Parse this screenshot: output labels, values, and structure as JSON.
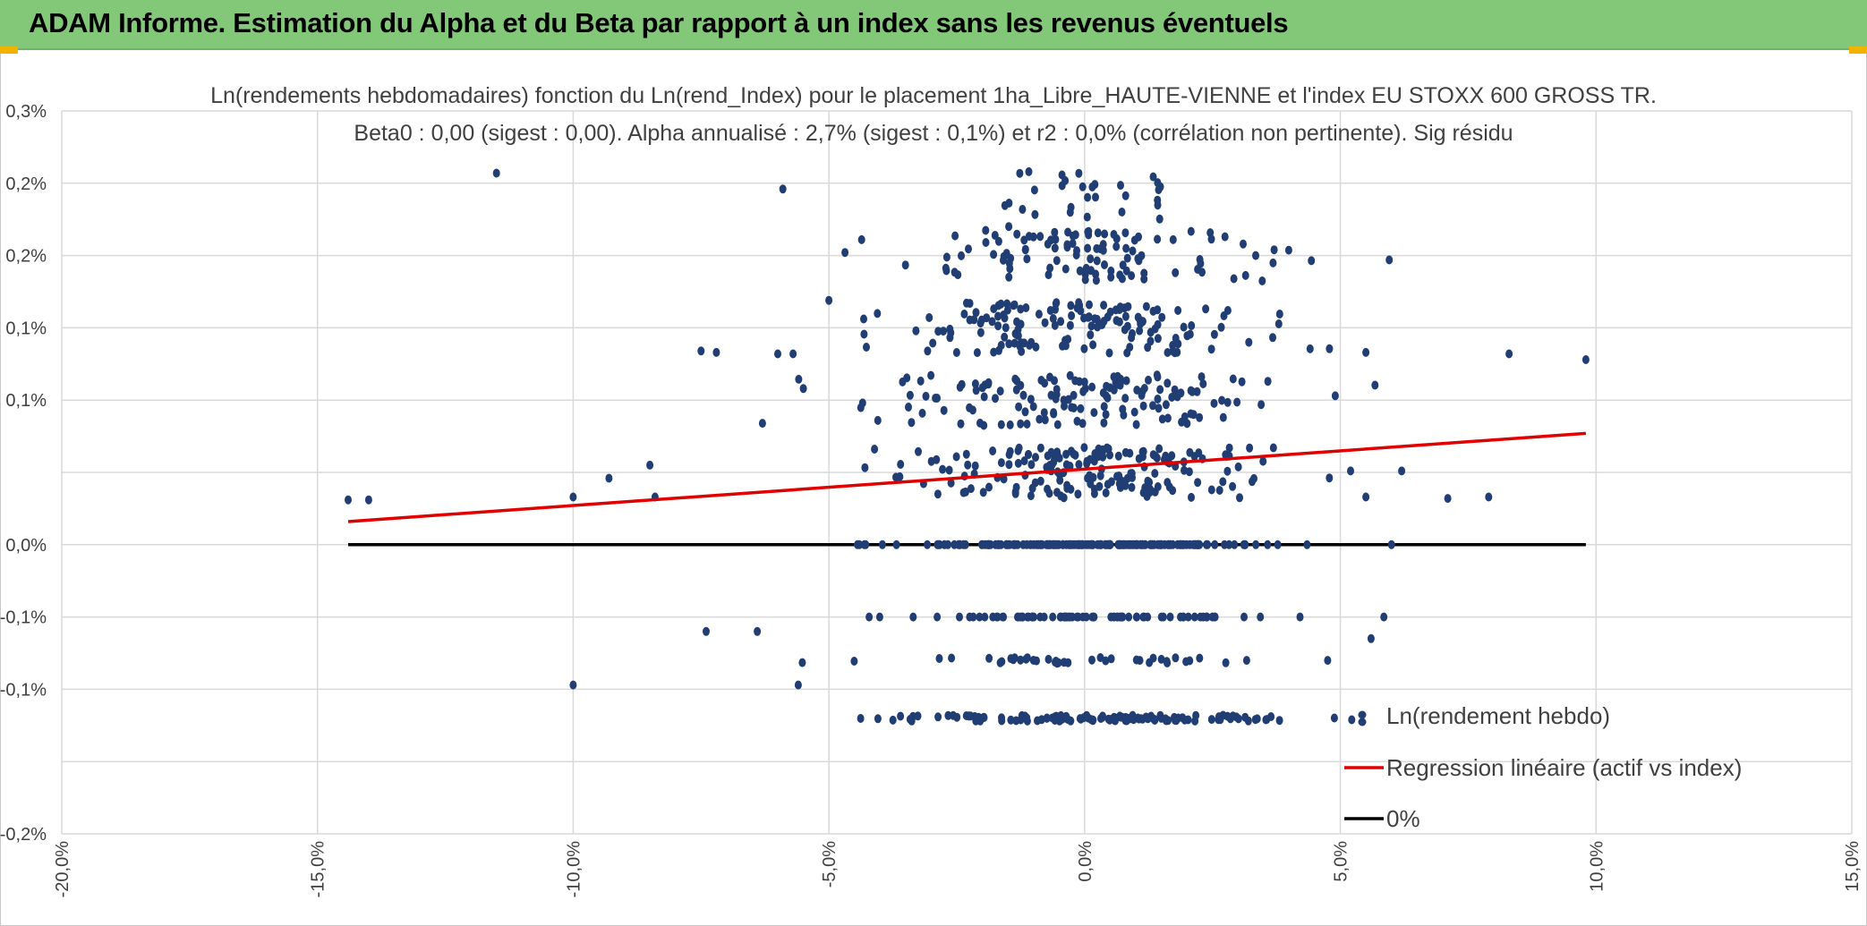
{
  "header": {
    "title": "ADAM Informe. Estimation du Alpha et du Beta par rapport à un index sans les revenus éventuels"
  },
  "colors": {
    "banner": "#82c878",
    "points": "#203e74",
    "regression": "#e00000",
    "zero_line": "#000000",
    "grid": "#d9d9d9"
  },
  "chart_data": {
    "type": "scatter",
    "title_line1": "Ln(rendements hebdomadaires) fonction du Ln(rend_Index) pour le placement 1ha_Libre_HAUTE-VIENNE et l'index EU STOXX 600 GROSS TR.",
    "title_line2": "Beta0 : 0,00 (sigest : 0,00). Alpha annualisé : 2,7% (sigest : 0,1%) et r2 : 0,0% (corrélation non pertinente). Sig résidu",
    "xlim": [
      -0.2,
      0.15
    ],
    "ylim": [
      -0.002,
      0.003
    ],
    "x_ticks": [
      -0.2,
      -0.15,
      -0.1,
      -0.05,
      0.0,
      0.05,
      0.1,
      0.15
    ],
    "x_tick_labels": [
      "-20,0%",
      "-15,0%",
      "-10,0%",
      "-5,0%",
      "0,0%",
      "5,0%",
      "10,0%",
      "15,0%"
    ],
    "y_ticks": [
      0.003,
      0.0025,
      0.002,
      0.0015,
      0.001,
      0.0005,
      0.0,
      -0.0005,
      -0.001,
      -0.0015,
      -0.002
    ],
    "y_tick_labels": [
      "0,3%",
      "0,2%",
      "0,2%",
      "0,1%",
      "0,1%",
      "0,0%",
      "-0,1%",
      "-0,1%",
      "-0,2%"
    ],
    "y_tick_label_values": [
      0.003,
      0.0025,
      0.002,
      0.0015,
      0.001,
      0.0,
      -0.0005,
      -0.001,
      -0.002
    ],
    "grid": true,
    "legend_position": "bottom-right",
    "series": [
      {
        "name": "Ln(rendement hebdo)",
        "kind": "scatter",
        "seed": 7,
        "distribution": {
          "x_sd": 0.018,
          "levels": [
            0.0025,
            0.002,
            0.0015,
            0.001,
            0.0005,
            0.0,
            -0.0005,
            -0.0008,
            -0.0012
          ]
        },
        "points": [
          [
            -0.144,
            0.00031
          ],
          [
            -0.14,
            0.00031
          ],
          [
            -0.115,
            0.00257
          ],
          [
            -0.1,
            0.00033
          ],
          [
            -0.093,
            0.00046
          ],
          [
            -0.085,
            0.00055
          ],
          [
            -0.084,
            0.00033
          ],
          [
            -0.075,
            0.00134
          ],
          [
            -0.072,
            0.00133
          ],
          [
            -0.06,
            0.00132
          ],
          [
            -0.059,
            0.00246
          ],
          [
            -0.057,
            0.00132
          ],
          [
            -0.055,
            0.00108
          ],
          [
            -0.05,
            0.00169
          ],
          [
            -0.1,
            -0.00097
          ],
          [
            -0.056,
            -0.00097
          ],
          [
            -0.074,
            -0.0006
          ],
          [
            -0.064,
            -0.0006
          ],
          [
            -0.063,
            0.00084
          ],
          [
            0.055,
            0.00133
          ],
          [
            0.083,
            0.00132
          ],
          [
            0.098,
            0.00128
          ],
          [
            0.071,
            0.00032
          ],
          [
            0.079,
            0.00033
          ],
          [
            0.052,
            0.00051
          ],
          [
            0.062,
            0.00051
          ],
          [
            0.06,
            0.0
          ],
          [
            0.055,
            0.00033
          ],
          [
            0.056,
            -0.00065
          ],
          [
            0.049,
            0.00103
          ]
        ]
      },
      {
        "name": "Regression linéaire (actif vs index)",
        "kind": "line",
        "x": [
          -0.144,
          0.098
        ],
        "y": [
          0.00016,
          0.00077
        ]
      },
      {
        "name": "0%",
        "kind": "line",
        "x": [
          -0.144,
          0.098
        ],
        "y": [
          0.0,
          0.0
        ]
      }
    ]
  }
}
